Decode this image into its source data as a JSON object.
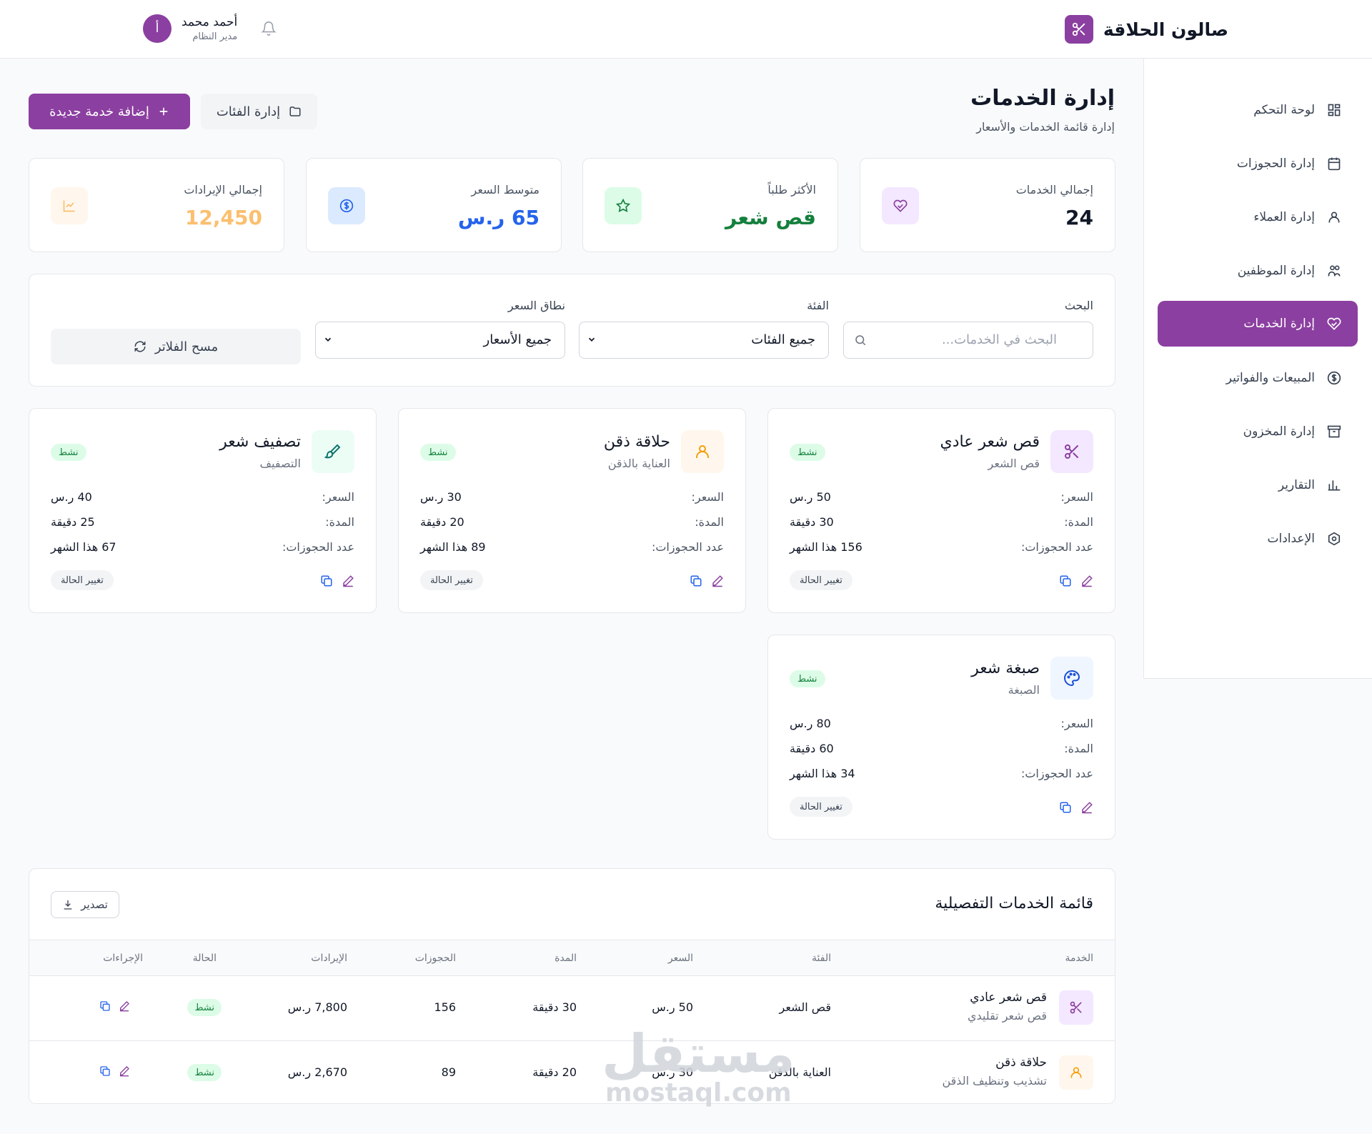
{
  "app": {
    "title": "صالون الحلاقة",
    "brand_color": "#8b3fa0",
    "logo_icon": "scissors-icon"
  },
  "user": {
    "name": "أحمد محمد",
    "role": "مدير النظام",
    "initial": "أ"
  },
  "sidebar": {
    "items": [
      {
        "label": "لوحة التحكم",
        "icon": "dashboard-icon"
      },
      {
        "label": "إدارة الحجوزات",
        "icon": "calendar-icon"
      },
      {
        "label": "إدارة العملاء",
        "icon": "user-icon"
      },
      {
        "label": "إدارة الموظفين",
        "icon": "users-icon"
      },
      {
        "label": "إدارة الخدمات",
        "icon": "heart-hand-icon",
        "active": true
      },
      {
        "label": "المبيعات والفواتير",
        "icon": "dollar-icon"
      },
      {
        "label": "إدارة المخزون",
        "icon": "archive-icon"
      },
      {
        "label": "التقارير",
        "icon": "bar-chart-icon"
      },
      {
        "label": "الإعدادات",
        "icon": "settings-icon"
      }
    ]
  },
  "header": {
    "title": "إدارة الخدمات",
    "subtitle": "إدارة قائمة الخدمات والأسعار",
    "add_button": "إضافة خدمة جديدة",
    "categories_button": "إدارة الفئات"
  },
  "stats": [
    {
      "label": "إجمالي الخدمات",
      "value": "24",
      "color": "#111827",
      "icon_bg": "#f3e8ff",
      "icon": "heart-hand-icon"
    },
    {
      "label": "الأكثر طلباً",
      "value": "قص شعر",
      "color": "#15803d",
      "icon_bg": "#dcfce7",
      "icon": "star-icon"
    },
    {
      "label": "متوسط السعر",
      "value": "65 ر.س",
      "color": "#2563eb",
      "icon_bg": "#dbeafe",
      "icon": "dollar-icon"
    },
    {
      "label": "إجمالي الإيرادات",
      "value": "12,450",
      "color": "#fbbf6e",
      "icon_bg": "#fff7ed",
      "icon": "trend-icon"
    }
  ],
  "filters": {
    "search_label": "البحث",
    "search_placeholder": "البحث في الخدمات...",
    "category_label": "الفئة",
    "category_value": "جميع الفئات",
    "price_label": "نطاق السعر",
    "price_value": "جميع الأسعار",
    "clear_button": "مسح الفلاتر"
  },
  "cards_labels": {
    "price": "السعر:",
    "duration": "المدة:",
    "bookings": "عدد الحجوزات:",
    "change_status": "تغيير الحالة"
  },
  "services": [
    {
      "title": "قص شعر عادي",
      "category": "قص الشعر",
      "status": "نشط",
      "price": "50 ر.س",
      "duration": "30 دقيقة",
      "bookings": "156 هذا الشهر",
      "icon": "scissors-icon",
      "icon_bg": "#f3e8ff",
      "icon_color": "#8b3fa0"
    },
    {
      "title": "حلاقة ذقن",
      "category": "العناية بالذقن",
      "status": "نشط",
      "price": "30 ر.س",
      "duration": "20 دقيقة",
      "bookings": "89 هذا الشهر",
      "icon": "user-icon",
      "icon_bg": "#fff7ed",
      "icon_color": "#f59e0b"
    },
    {
      "title": "تصفيف شعر",
      "category": "التصفيف",
      "status": "نشط",
      "price": "40 ر.س",
      "duration": "25 دقيقة",
      "bookings": "67 هذا الشهر",
      "icon": "brush-icon",
      "icon_bg": "#ecfdf5",
      "icon_color": "#0f766e"
    },
    {
      "title": "صبغة شعر",
      "category": "الصبغة",
      "status": "نشط",
      "price": "80 ر.س",
      "duration": "60 دقيقة",
      "bookings": "34 هذا الشهر",
      "icon": "palette-icon",
      "icon_bg": "#eff6ff",
      "icon_color": "#1d4ed8"
    }
  ],
  "table": {
    "title": "قائمة الخدمات التفصيلية",
    "export_button": "تصدير",
    "columns": [
      "الخدمة",
      "الفئة",
      "السعر",
      "المدة",
      "الحجوزات",
      "الإيرادات",
      "الحالة",
      "الإجراءات"
    ],
    "rows": [
      {
        "name": "قص شعر عادي",
        "desc": "قص شعر تقليدي",
        "category": "قص الشعر",
        "price": "50 ر.س",
        "duration": "30 دقيقة",
        "bookings": "156",
        "revenue": "7,800 ر.س",
        "status": "نشط",
        "icon": "scissors-icon"
      },
      {
        "name": "حلاقة ذقن",
        "desc": "تشذيب وتنظيف الذقن",
        "category": "العناية بالذقن",
        "price": "30 ر.س",
        "duration": "20 دقيقة",
        "bookings": "89",
        "revenue": "2,670 ر.س",
        "status": "نشط",
        "icon": "user-icon"
      }
    ]
  },
  "watermark": {
    "ar": "مستقل",
    "en": "mostaql.com"
  }
}
